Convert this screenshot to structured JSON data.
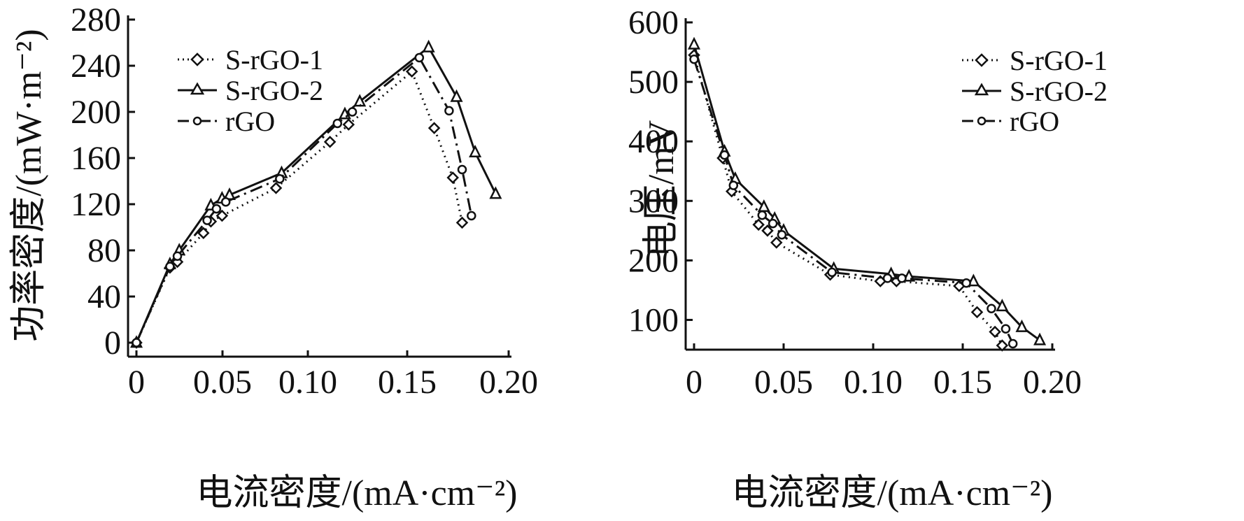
{
  "chart_data": [
    {
      "type": "line",
      "ylabel": "功率密度/(mW·m⁻²)",
      "xlabel": "电流密度/(mA·cm⁻²)",
      "xlim": [
        0,
        0.2
      ],
      "ylim": [
        0,
        280
      ],
      "xticks": [
        "0",
        "0.05",
        "0.10",
        "0.15",
        "0.20"
      ],
      "yticks": [
        "0",
        "40",
        "80",
        "120",
        "160",
        "200",
        "240",
        "280"
      ],
      "legend_position": "top-left",
      "series": [
        {
          "name": "S-rGO-1",
          "style": "dotted",
          "marker": "diamond",
          "points": [
            [
              0,
              0
            ],
            [
              0.018,
              65
            ],
            [
              0.022,
              70
            ],
            [
              0.036,
              95
            ],
            [
              0.04,
              105
            ],
            [
              0.046,
              110
            ],
            [
              0.075,
              134
            ],
            [
              0.104,
              174
            ],
            [
              0.114,
              189
            ],
            [
              0.148,
              235
            ],
            [
              0.16,
              186
            ],
            [
              0.17,
              143
            ],
            [
              0.175,
              104
            ]
          ]
        },
        {
          "name": "S-rGO-2",
          "style": "solid",
          "marker": "triangle",
          "points": [
            [
              0,
              0
            ],
            [
              0.018,
              68
            ],
            [
              0.023,
              80
            ],
            [
              0.04,
              119
            ],
            [
              0.046,
              125
            ],
            [
              0.05,
              128
            ],
            [
              0.078,
              147
            ],
            [
              0.112,
              198
            ],
            [
              0.12,
              209
            ],
            [
              0.157,
              256
            ],
            [
              0.172,
              213
            ],
            [
              0.182,
              165
            ],
            [
              0.193,
              129
            ]
          ]
        },
        {
          "name": "rGO",
          "style": "dash-dot",
          "marker": "circle",
          "points": [
            [
              0,
              0
            ],
            [
              0.018,
              66
            ],
            [
              0.022,
              75
            ],
            [
              0.038,
              106
            ],
            [
              0.043,
              116
            ],
            [
              0.048,
              122
            ],
            [
              0.077,
              142
            ],
            [
              0.108,
              190
            ],
            [
              0.116,
              200
            ],
            [
              0.152,
              247
            ],
            [
              0.168,
              201
            ],
            [
              0.175,
              150
            ],
            [
              0.18,
              110
            ]
          ]
        }
      ]
    },
    {
      "type": "line",
      "ylabel": "电压/mV",
      "xlabel": "电流密度/(mA·cm⁻²)",
      "xlim": [
        0,
        0.2
      ],
      "ylim": [
        50,
        600
      ],
      "xticks": [
        "0",
        "0.05",
        "0.10",
        "0.15",
        "0.20"
      ],
      "yticks": [
        "100",
        "200",
        "300",
        "400",
        "500",
        "600"
      ],
      "legend_position": "top-right",
      "series": [
        {
          "name": "S-rGO-1",
          "style": "dotted",
          "marker": "diamond",
          "points": [
            [
              0,
              545
            ],
            [
              0.016,
              372
            ],
            [
              0.021,
              316
            ],
            [
              0.036,
              260
            ],
            [
              0.041,
              250
            ],
            [
              0.046,
              230
            ],
            [
              0.076,
              176
            ],
            [
              0.104,
              165
            ],
            [
              0.113,
              165
            ],
            [
              0.148,
              157
            ],
            [
              0.158,
              113
            ],
            [
              0.168,
              80
            ],
            [
              0.172,
              57
            ]
          ]
        },
        {
          "name": "S-rGO-2",
          "style": "solid",
          "marker": "triangle",
          "points": [
            [
              0,
              563
            ],
            [
              0.017,
              383
            ],
            [
              0.023,
              337
            ],
            [
              0.039,
              290
            ],
            [
              0.045,
              270
            ],
            [
              0.05,
              250
            ],
            [
              0.078,
              186
            ],
            [
              0.11,
              177
            ],
            [
              0.12,
              173
            ],
            [
              0.156,
              165
            ],
            [
              0.172,
              123
            ],
            [
              0.183,
              88
            ],
            [
              0.193,
              66
            ]
          ]
        },
        {
          "name": "rGO",
          "style": "dash-dot",
          "marker": "circle",
          "points": [
            [
              0,
              538
            ],
            [
              0.017,
              377
            ],
            [
              0.022,
              326
            ],
            [
              0.038,
              276
            ],
            [
              0.044,
              262
            ],
            [
              0.049,
              243
            ],
            [
              0.077,
              180
            ],
            [
              0.108,
              170
            ],
            [
              0.116,
              170
            ],
            [
              0.152,
              162
            ],
            [
              0.166,
              119
            ],
            [
              0.174,
              85
            ],
            [
              0.178,
              60
            ]
          ]
        }
      ]
    }
  ]
}
